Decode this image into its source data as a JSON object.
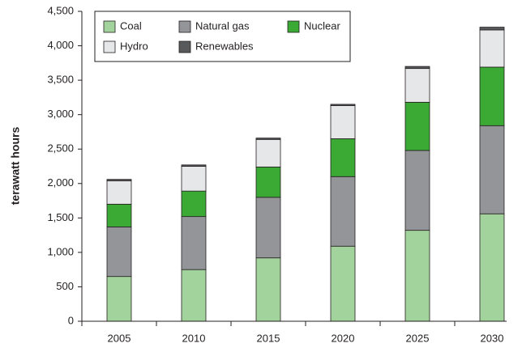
{
  "chart_data": {
    "type": "bar",
    "stacked": true,
    "y_label": "terawatt hours",
    "categories": [
      "2005",
      "2010",
      "2015",
      "2020",
      "2025",
      "2030"
    ],
    "series": [
      {
        "name": "Coal",
        "color": "#a3d39c",
        "values": [
          650,
          750,
          920,
          1090,
          1320,
          1560
        ]
      },
      {
        "name": "Natural gas",
        "color": "#939598",
        "values": [
          720,
          770,
          880,
          1010,
          1160,
          1280
        ]
      },
      {
        "name": "Nuclear",
        "color": "#3aaa35",
        "values": [
          330,
          370,
          440,
          550,
          700,
          850
        ]
      },
      {
        "name": "Hydro",
        "color": "#e6e7e8",
        "values": [
          340,
          360,
          400,
          480,
          490,
          540
        ]
      },
      {
        "name": "Renewables",
        "color": "#58595b",
        "values": [
          20,
          20,
          20,
          20,
          30,
          40
        ]
      }
    ],
    "ylim": [
      0,
      4500
    ],
    "yticks": [
      0,
      500,
      {
        "value": 1000,
        "label": "1,000"
      },
      {
        "value": 1500,
        "label": "1,500"
      },
      {
        "value": 2000,
        "label": "2,000"
      },
      {
        "value": 2500,
        "label": "2,500"
      },
      {
        "value": 3000,
        "label": "3,000"
      },
      {
        "value": 3500,
        "label": "3,500"
      },
      {
        "value": 4000,
        "label": "4,000"
      },
      {
        "value": 4500,
        "label": "4,500"
      }
    ],
    "grid": false,
    "legend": "top-left"
  }
}
